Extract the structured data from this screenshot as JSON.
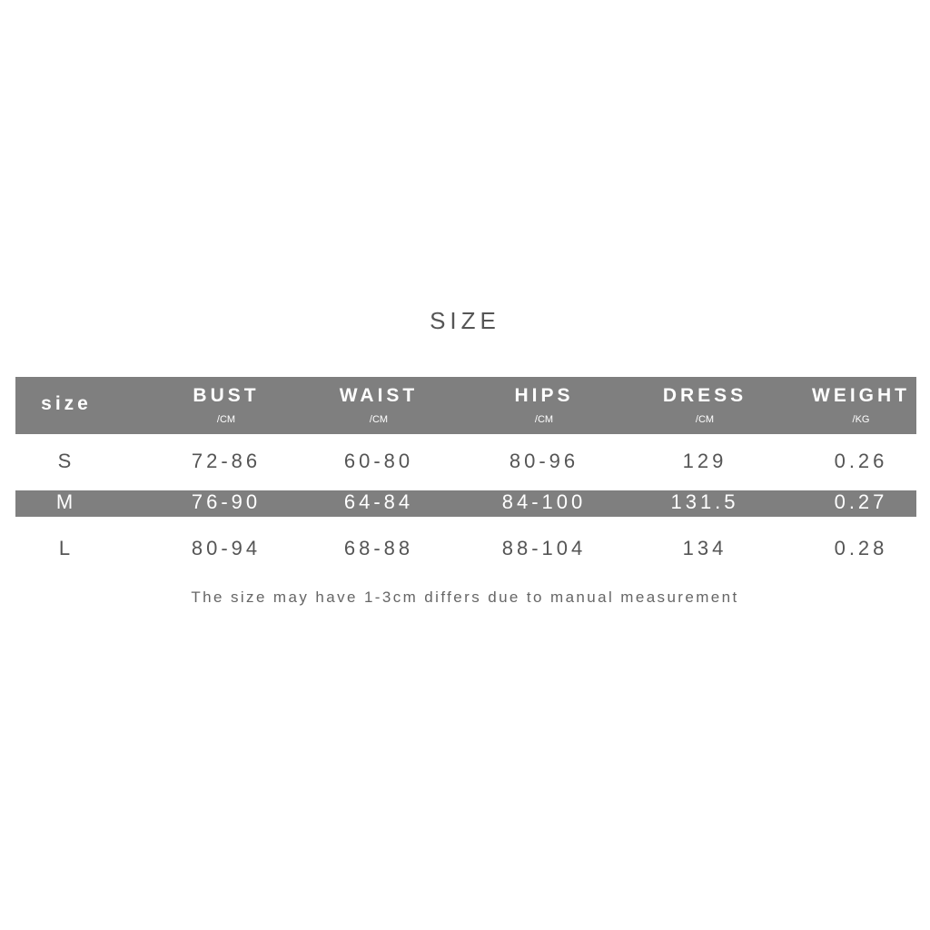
{
  "title": "SIZE",
  "headers": [
    {
      "label": "size",
      "unit": ""
    },
    {
      "label": "BUST",
      "unit": "/CM"
    },
    {
      "label": "WAIST",
      "unit": "/CM"
    },
    {
      "label": "HIPS",
      "unit": "/CM"
    },
    {
      "label": "DRESS",
      "unit": "/CM"
    },
    {
      "label": "WEIGHT",
      "unit": "/KG"
    }
  ],
  "rows": [
    [
      "S",
      "72-86",
      "60-80",
      "80-96",
      "129",
      "0.26"
    ],
    [
      "M",
      "76-90",
      "64-84",
      "84-100",
      "131.5",
      "0.27"
    ],
    [
      "L",
      "80-94",
      "68-88",
      "88-104",
      "134",
      "0.28"
    ]
  ],
  "note": "The size may have 1-3cm differs due to manual measurement",
  "colors": {
    "header_bg": "#7f7f7f",
    "text": "#555555"
  }
}
